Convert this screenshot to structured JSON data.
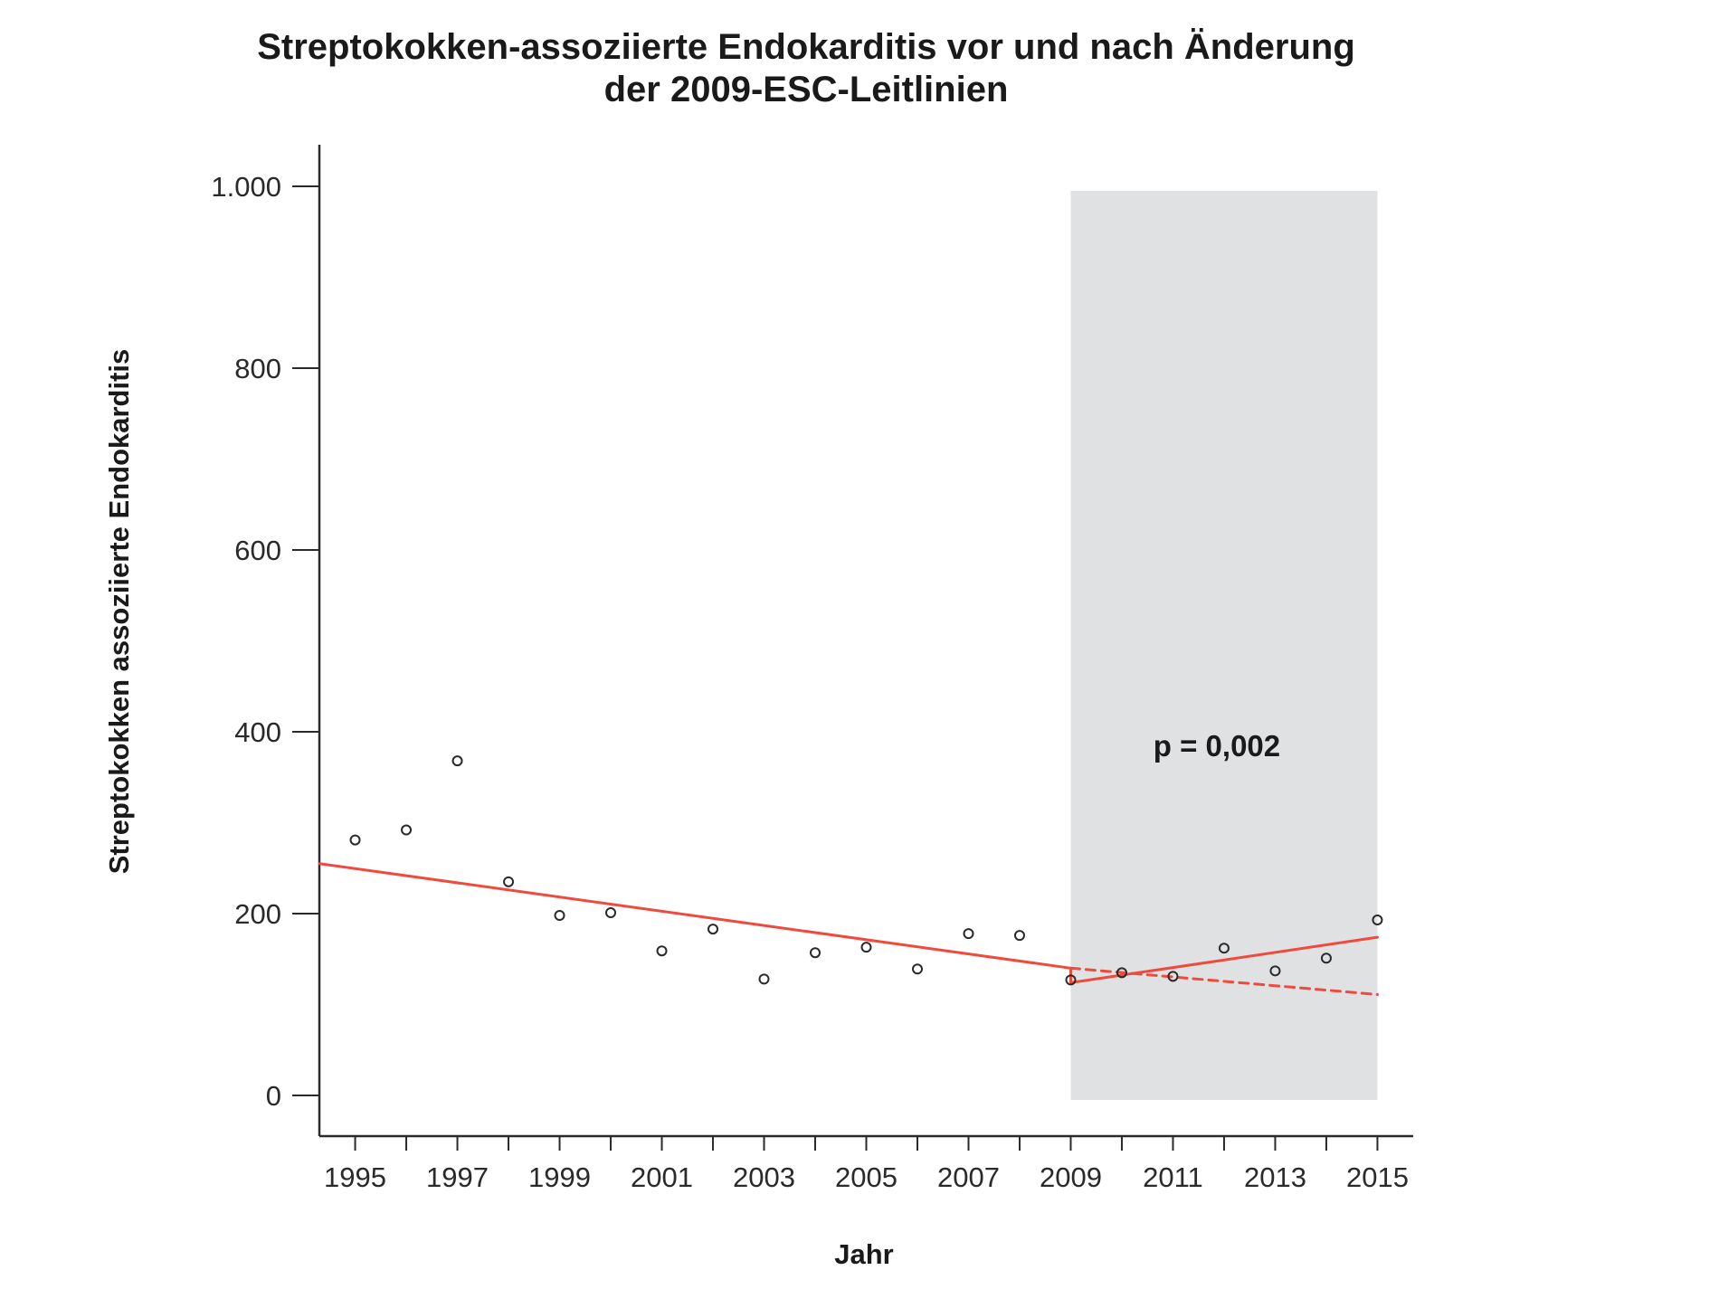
{
  "chart_data": {
    "type": "scatter",
    "title": "Streptokokken-assoziierte Endokarditis vor und nach Änderung der 2009-ESC-Leitlinien",
    "title_lines": [
      "Streptokokken-assoziierte Endokarditis vor und nach Änderung",
      "der 2009-ESC-Leitlinien"
    ],
    "xlabel": "Jahr",
    "ylabel": "Streptokokken assoziierte Endokarditis",
    "xlim": [
      1994.3,
      2015.7
    ],
    "ylim": [
      0,
      1000
    ],
    "x_ticks": [
      1995,
      1996,
      1997,
      1998,
      1999,
      2000,
      2001,
      2002,
      2003,
      2004,
      2005,
      2006,
      2007,
      2008,
      2009,
      2010,
      2011,
      2012,
      2013,
      2014,
      2015
    ],
    "x_tick_labels": [
      {
        "x": 1995,
        "label": "1995"
      },
      {
        "x": 1997,
        "label": "1997"
      },
      {
        "x": 1999,
        "label": "1999"
      },
      {
        "x": 2001,
        "label": "2001"
      },
      {
        "x": 2003,
        "label": "2003"
      },
      {
        "x": 2005,
        "label": "2005"
      },
      {
        "x": 2007,
        "label": "2007"
      },
      {
        "x": 2009,
        "label": "2009"
      },
      {
        "x": 2011,
        "label": "2011"
      },
      {
        "x": 2013,
        "label": "2013"
      },
      {
        "x": 2015,
        "label": "2015"
      }
    ],
    "y_ticks": [
      {
        "y": 0,
        "label": "0"
      },
      {
        "y": 200,
        "label": "200"
      },
      {
        "y": 400,
        "label": "400"
      },
      {
        "y": 600,
        "label": "600"
      },
      {
        "y": 800,
        "label": "800"
      },
      {
        "y": 1000,
        "label": "1.000"
      }
    ],
    "grid": false,
    "points": [
      {
        "x": 1995,
        "y": 281
      },
      {
        "x": 1996,
        "y": 292
      },
      {
        "x": 1997,
        "y": 368
      },
      {
        "x": 1998,
        "y": 235
      },
      {
        "x": 1999,
        "y": 198
      },
      {
        "x": 2000,
        "y": 201
      },
      {
        "x": 2001,
        "y": 159
      },
      {
        "x": 2002,
        "y": 183
      },
      {
        "x": 2003,
        "y": 128
      },
      {
        "x": 2004,
        "y": 157
      },
      {
        "x": 2005,
        "y": 163
      },
      {
        "x": 2006,
        "y": 139
      },
      {
        "x": 2007,
        "y": 178
      },
      {
        "x": 2008,
        "y": 176
      },
      {
        "x": 2009,
        "y": 127
      },
      {
        "x": 2010,
        "y": 135
      },
      {
        "x": 2011,
        "y": 131
      },
      {
        "x": 2012,
        "y": 162
      },
      {
        "x": 2013,
        "y": 137
      },
      {
        "x": 2014,
        "y": 151
      },
      {
        "x": 2015,
        "y": 193
      }
    ],
    "trend_pre": {
      "x": [
        1994.3,
        2009
      ],
      "y": [
        255,
        140
      ]
    },
    "trend_post": {
      "x": [
        2009,
        2015
      ],
      "y": [
        124,
        174
      ]
    },
    "trend_counterfactual": {
      "x": [
        2009,
        2015
      ],
      "y": [
        140,
        111
      ],
      "style": "dashed"
    },
    "shaded_region": {
      "x": [
        2009,
        2015
      ],
      "y": [
        -5,
        995
      ],
      "color": "#e0e1e3"
    },
    "annotation": {
      "text": "p = 0,002",
      "x": 2012.0,
      "y": 385
    },
    "colors": {
      "trend": "#f04a3c",
      "points": "#2a2a2a",
      "axis": "#2a2a2a",
      "shade": "#e0e1e3"
    }
  }
}
